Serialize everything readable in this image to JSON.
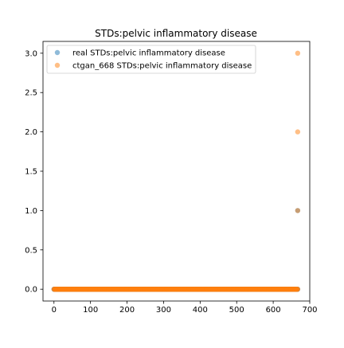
{
  "chart_data": {
    "type": "scatter",
    "title": "STDs:pelvic inflammatory disease",
    "xlabel": "",
    "ylabel": "",
    "xlim": [
      -30,
      700
    ],
    "ylim": [
      -0.15,
      3.15
    ],
    "xticks": [
      0,
      100,
      200,
      300,
      400,
      500,
      600,
      700
    ],
    "yticks": [
      0.0,
      0.5,
      1.0,
      1.5,
      2.0,
      2.5,
      3.0
    ],
    "xtick_labels": [
      "0",
      "100",
      "200",
      "300",
      "400",
      "500",
      "600",
      "700"
    ],
    "ytick_labels": [
      "0.0",
      "0.5",
      "1.0",
      "1.5",
      "2.0",
      "2.5",
      "3.0"
    ],
    "grid": false,
    "legend_position": "top-left",
    "series": [
      {
        "name": "real STDs:pelvic inflammatory disease",
        "color": "#1f77b4",
        "alpha": 0.5,
        "x_range": [
          0,
          667
        ],
        "baseline_y": 0,
        "extra_points": [
          [
            667,
            1
          ]
        ]
      },
      {
        "name": "ctgan_668 STDs:pelvic inflammatory disease",
        "color": "#ff7f0e",
        "alpha": 0.5,
        "x_range": [
          0,
          667
        ],
        "baseline_y": 0,
        "extra_points": [
          [
            667,
            1
          ],
          [
            667,
            2
          ],
          [
            667,
            3
          ]
        ]
      }
    ]
  }
}
